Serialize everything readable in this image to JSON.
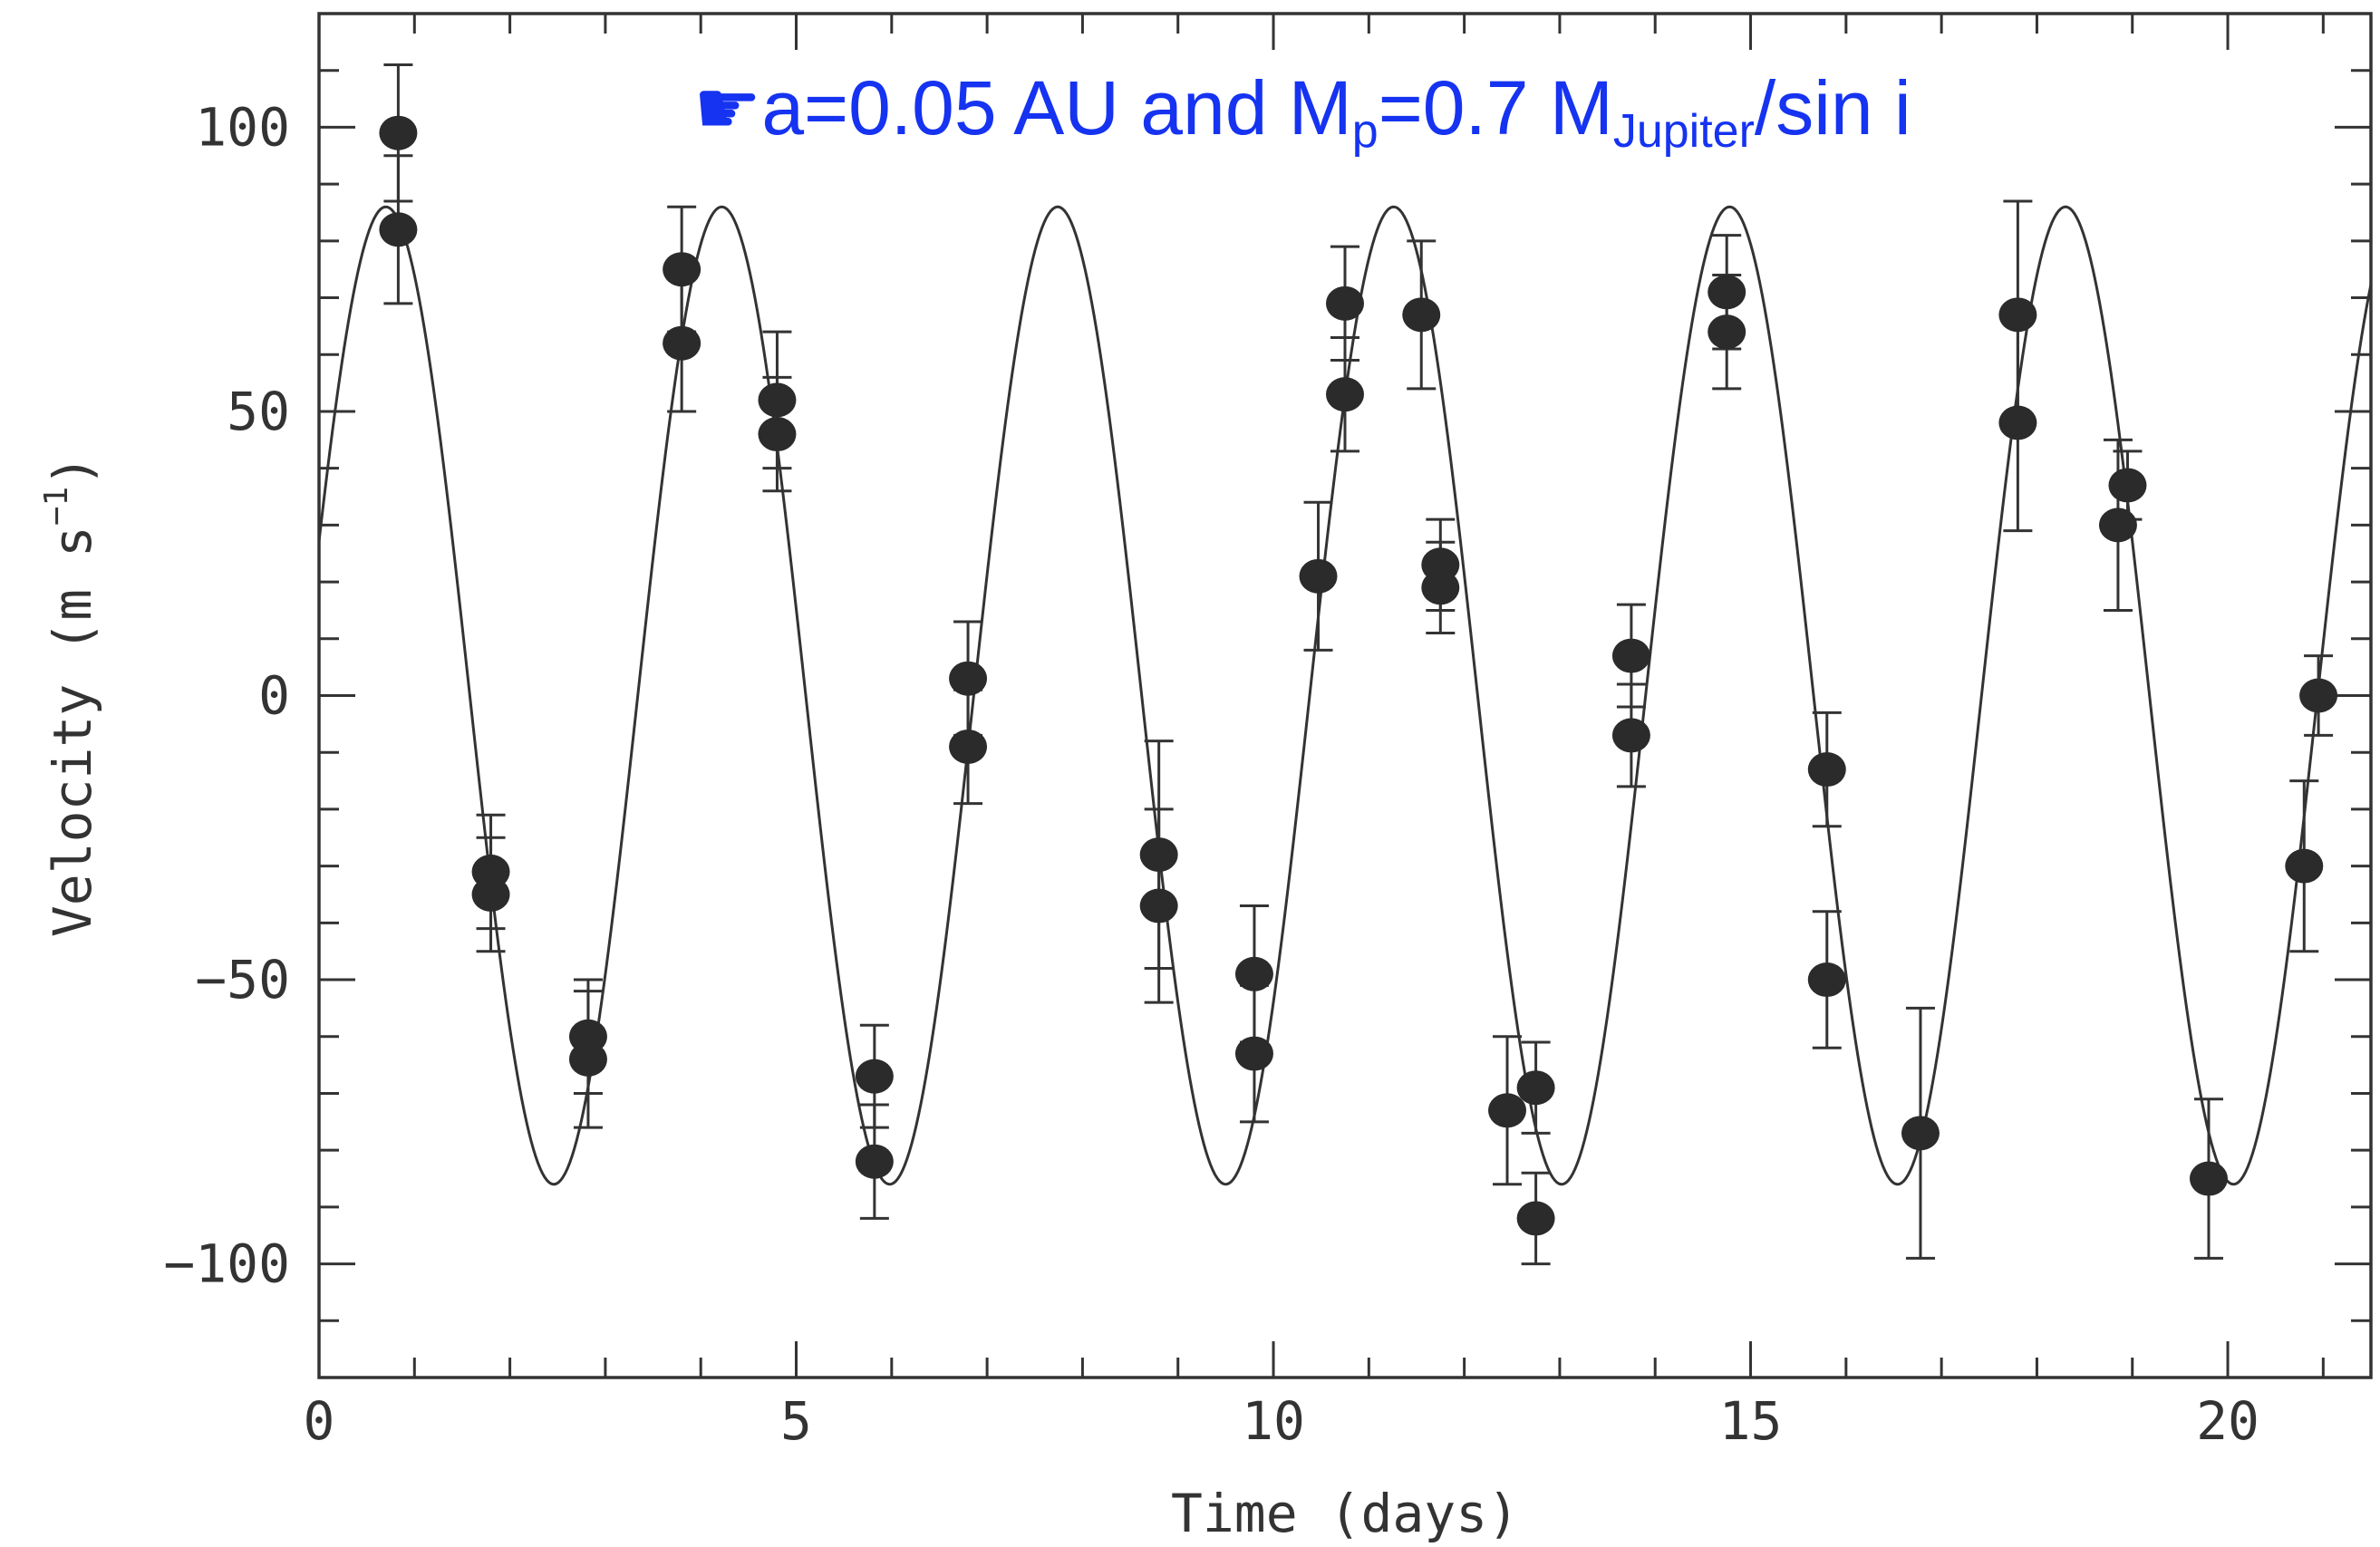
{
  "colors": {
    "annotation": "#1533f0",
    "axis": "#333333",
    "curve": "#333333",
    "points": "#2b2b2b"
  },
  "annotation": {
    "icon": "pointing-hand-icon",
    "icon_glyph": "☛",
    "prefix": "a=0.05 AU and M",
    "sub1": "p",
    "mid": "=0.7 M",
    "sub2": "Jupiter",
    "suffix": "/sin i"
  },
  "chart_data": {
    "type": "scatter",
    "title": "",
    "xlabel": "Time (days)",
    "ylabel": "Velocity (m s",
    "ylabel_exp": "−1",
    "ylabel_close": ")",
    "xlim": [
      0,
      21.5
    ],
    "ylim": [
      -120,
      120
    ],
    "xticks": [
      0,
      5,
      10,
      15,
      20
    ],
    "yticks": [
      -100,
      -50,
      0,
      50,
      100
    ],
    "xtick_labels": [
      "0",
      "5",
      "10",
      "15",
      "20"
    ],
    "ytick_labels": [
      "−100",
      "−50",
      "0",
      "50",
      "100"
    ],
    "grid": false,
    "fit_curve": {
      "type": "sinusoid",
      "amplitude": 86,
      "period_days": 3.52,
      "x_of_first_peak": 0.7
    },
    "series": [
      {
        "points": [
          {
            "x": 0.83,
            "y": 99,
            "err": 12
          },
          {
            "x": 0.83,
            "y": 82,
            "err": 13
          },
          {
            "x": 1.8,
            "y": -31,
            "err": 10
          },
          {
            "x": 1.8,
            "y": -35,
            "err": 10
          },
          {
            "x": 2.82,
            "y": -60,
            "err": 10
          },
          {
            "x": 2.82,
            "y": -64,
            "err": 12
          },
          {
            "x": 3.8,
            "y": 75,
            "err": 11
          },
          {
            "x": 3.8,
            "y": 62,
            "err": 12
          },
          {
            "x": 4.8,
            "y": 52,
            "err": 12
          },
          {
            "x": 4.8,
            "y": 46,
            "err": 10
          },
          {
            "x": 5.82,
            "y": -67,
            "err": 9
          },
          {
            "x": 5.82,
            "y": -82,
            "err": 10
          },
          {
            "x": 6.8,
            "y": 3,
            "err": 10
          },
          {
            "x": 6.8,
            "y": -9,
            "err": 10
          },
          {
            "x": 8.8,
            "y": -28,
            "err": 20
          },
          {
            "x": 8.8,
            "y": -37,
            "err": 17
          },
          {
            "x": 9.8,
            "y": -49,
            "err": 12
          },
          {
            "x": 9.8,
            "y": -63,
            "err": 12
          },
          {
            "x": 10.47,
            "y": 21,
            "err": 13
          },
          {
            "x": 10.75,
            "y": 69,
            "err": 10
          },
          {
            "x": 10.75,
            "y": 53,
            "err": 10
          },
          {
            "x": 11.55,
            "y": 67,
            "err": 13
          },
          {
            "x": 11.75,
            "y": 23,
            "err": 8
          },
          {
            "x": 11.75,
            "y": 19,
            "err": 8
          },
          {
            "x": 12.45,
            "y": -73,
            "err": 13
          },
          {
            "x": 12.75,
            "y": -69,
            "err": 8
          },
          {
            "x": 12.75,
            "y": -92,
            "err": 8
          },
          {
            "x": 13.75,
            "y": 7,
            "err": 9
          },
          {
            "x": 13.75,
            "y": -7,
            "err": 9
          },
          {
            "x": 14.75,
            "y": 71,
            "err": 10
          },
          {
            "x": 14.75,
            "y": 64,
            "err": 10
          },
          {
            "x": 15.8,
            "y": -13,
            "err": 10
          },
          {
            "x": 15.8,
            "y": -50,
            "err": 12
          },
          {
            "x": 16.78,
            "y": -77,
            "err": 22
          },
          {
            "x": 17.8,
            "y": 67,
            "err": 20
          },
          {
            "x": 17.8,
            "y": 48,
            "err": 19
          },
          {
            "x": 18.85,
            "y": 30,
            "err": 15
          },
          {
            "x": 18.95,
            "y": 37,
            "err": 6
          },
          {
            "x": 19.8,
            "y": -85,
            "err": 14
          },
          {
            "x": 20.8,
            "y": -30,
            "err": 15
          },
          {
            "x": 20.95,
            "y": 0,
            "err": 7
          }
        ]
      }
    ]
  }
}
